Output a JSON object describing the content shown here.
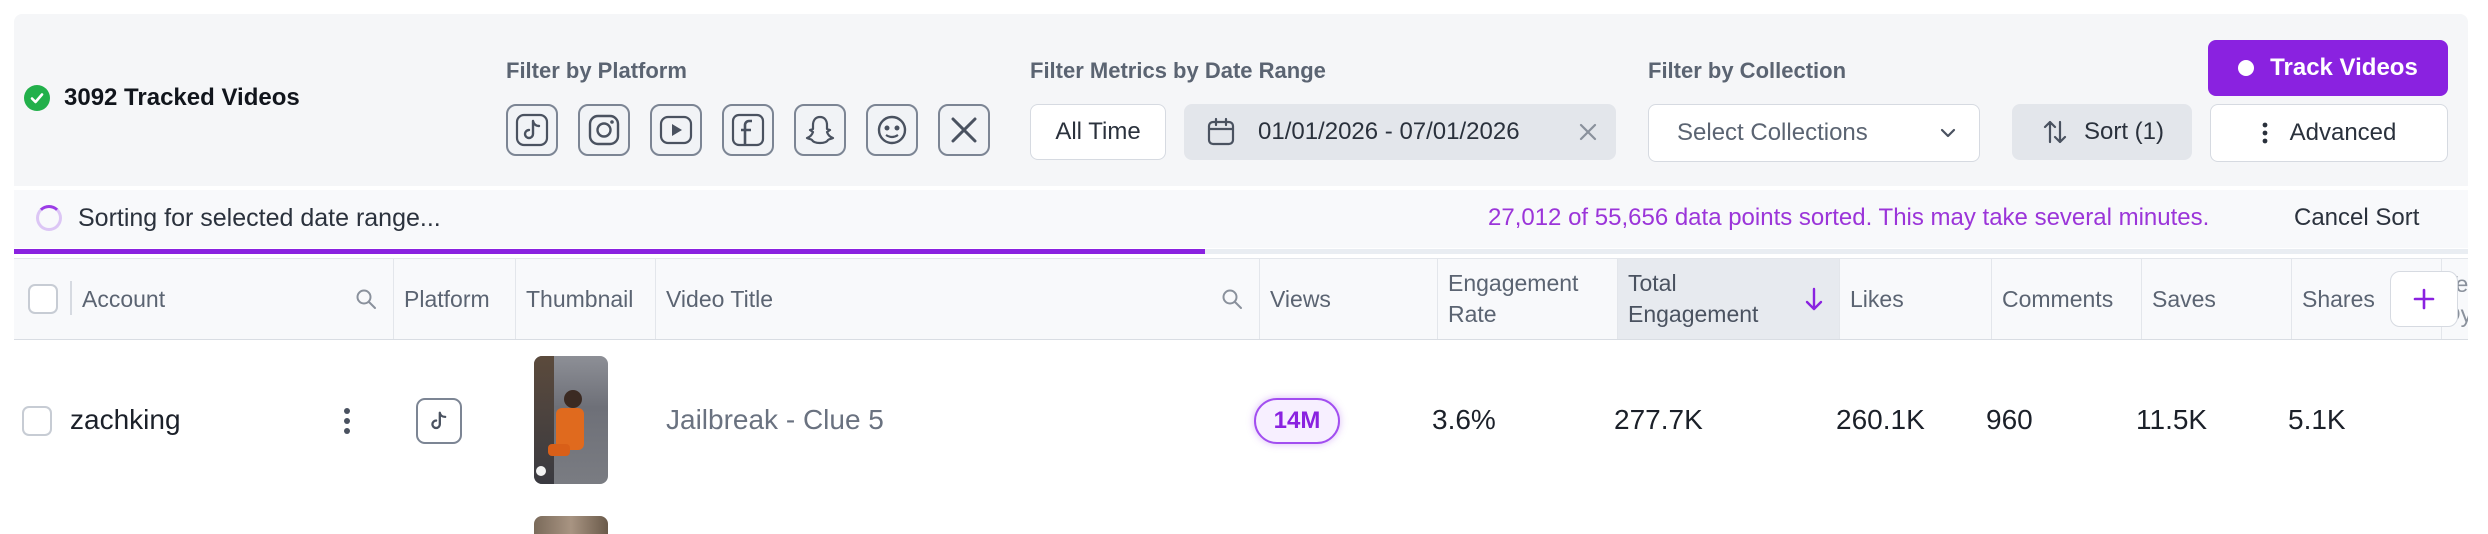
{
  "toolbar": {
    "tracked_count": "3092 Tracked Videos",
    "filter_platform_label": "Filter by Platform",
    "platforms": [
      "tiktok-icon",
      "instagram-icon",
      "youtube-icon",
      "facebook-icon",
      "snapchat-icon",
      "threads-icon",
      "x-icon"
    ],
    "filter_date_label": "Filter Metrics by Date Range",
    "all_time_label": "All Time",
    "date_range": "01/01/2026 - 07/01/2026",
    "filter_collection_label": "Filter by Collection",
    "collections_placeholder": "Select Collections",
    "sort_label": "Sort (1)",
    "track_videos_label": "Track Videos",
    "advanced_label": "Advanced"
  },
  "sort_status": {
    "message": "Sorting for selected date range...",
    "progress_text": "27,012 of 55,656 data points sorted. This may take several minutes.",
    "cancel_label": "Cancel Sort",
    "progress_fraction": 0.4853
  },
  "table": {
    "columns": {
      "account": "Account",
      "platform": "Platform",
      "thumbnail": "Thumbnail",
      "video_title": "Video Title",
      "views": "Views",
      "engagement_rate_1": "Engagement",
      "engagement_rate_2": "Rate",
      "total_engagement_1": "Total",
      "total_engagement_2": "Engagement",
      "likes": "Likes",
      "comments": "Comments",
      "saves": "Saves",
      "shares": "Shares",
      "partial_1": "Te",
      "partial_2": "Dy"
    },
    "rows": [
      {
        "account": "zachking",
        "platform_icon": "tiktok-icon",
        "video_title": "Jailbreak - Clue 5",
        "views": "14M",
        "engagement_rate": "3.6%",
        "total_engagement": "277.7K",
        "likes": "260.1K",
        "comments": "960",
        "saves": "11.5K",
        "shares": "5.1K"
      }
    ]
  },
  "colors": {
    "accent": "#8a22e0",
    "success": "#22b04b",
    "progress_text": "#9b35d9"
  }
}
